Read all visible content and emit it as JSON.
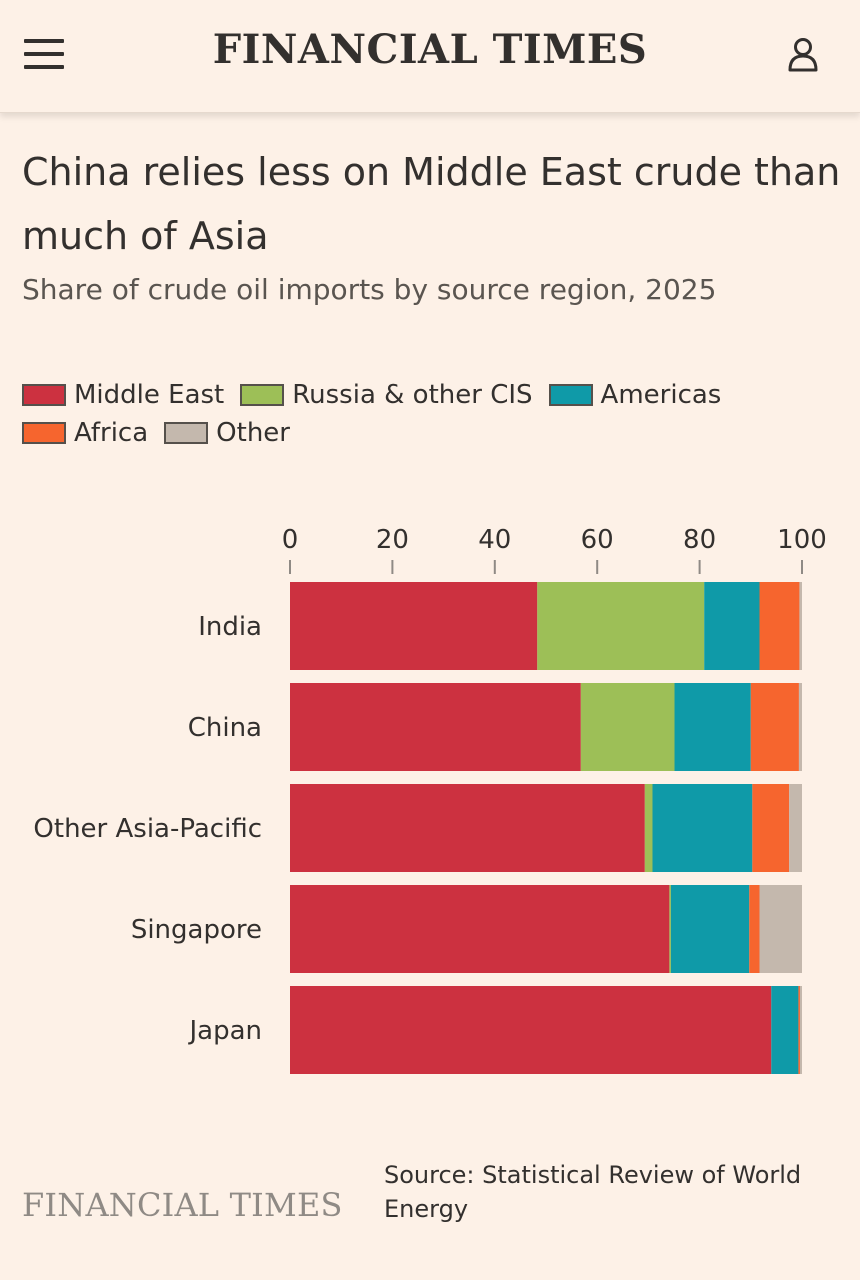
{
  "header": {
    "brand": "FINANCIAL TIMES",
    "menu_icon": "hamburger-menu-icon",
    "account_icon": "user-account-icon"
  },
  "footer": {
    "brand": "FINANCIAL TIMES",
    "source": "Source: Statistical Review of World Energy"
  },
  "chart_data": {
    "type": "bar",
    "orientation": "horizontal",
    "stacked": true,
    "title": "China relies less on Middle East crude than much of Asia",
    "subtitle": "Share of crude oil imports by source region, 2025",
    "xlabel": "",
    "ylabel": "",
    "xlim": [
      0,
      100
    ],
    "xticks": [
      0,
      20,
      40,
      60,
      80,
      100
    ],
    "legend_position": "top-left",
    "grid": false,
    "categories": [
      "India",
      "China",
      "Other Asia-Pacific",
      "Singapore",
      "Japan"
    ],
    "series": [
      {
        "name": "Middle East",
        "color": "#cc3140",
        "values": [
          48.3,
          56.8,
          69.3,
          74.1,
          94.0
        ]
      },
      {
        "name": "Russia & other CIS",
        "color": "#9dbf57",
        "values": [
          32.6,
          18.3,
          1.5,
          0.3,
          0.0
        ]
      },
      {
        "name": "Americas",
        "color": "#0f9aa8",
        "values": [
          10.8,
          14.9,
          19.5,
          15.3,
          5.3
        ]
      },
      {
        "name": "Africa",
        "color": "#f6652e",
        "values": [
          7.8,
          9.4,
          7.2,
          2.0,
          0.3
        ]
      },
      {
        "name": "Other",
        "color": "#c4b8ad",
        "values": [
          0.5,
          0.6,
          2.5,
          8.3,
          0.4
        ]
      }
    ]
  }
}
